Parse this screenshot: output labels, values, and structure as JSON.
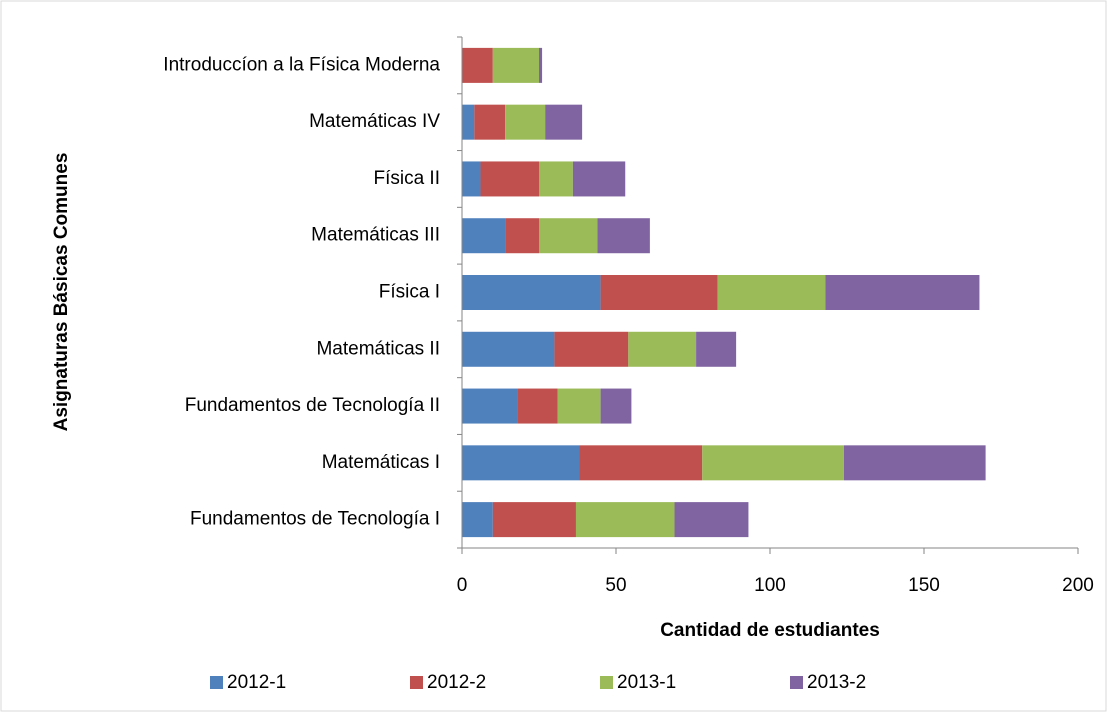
{
  "chart_data": {
    "type": "stacked_bar_horizontal",
    "x_label": "Cantidad de estudiantes",
    "y_label": "Asignaturas Básicas Comunes",
    "categories": [
      "Fundamentos de Tecnología I",
      "Matemáticas I",
      "Fundamentos de Tecnología II",
      "Matemáticas II",
      "Física I",
      "Matemáticas III",
      "Física II",
      "Matemáticas IV",
      "Introduccíon a la Física Moderna"
    ],
    "series": [
      {
        "name": "2012-1",
        "color": "#4f81bd",
        "values": [
          10,
          38,
          18,
          30,
          45,
          14,
          6,
          4,
          0
        ]
      },
      {
        "name": "2012-2",
        "color": "#c0504d",
        "values": [
          27,
          40,
          13,
          24,
          38,
          11,
          19,
          10,
          10
        ]
      },
      {
        "name": "2013-1",
        "color": "#9bbb59",
        "values": [
          32,
          46,
          14,
          22,
          35,
          19,
          11,
          13,
          15
        ]
      },
      {
        "name": "2013-2",
        "color": "#8064a2",
        "values": [
          24,
          46,
          10,
          13,
          50,
          17,
          17,
          12,
          1
        ]
      }
    ],
    "xlim": [
      0,
      200
    ],
    "xticks": [
      0,
      50,
      100,
      150,
      200
    ],
    "legend": "bottom"
  }
}
